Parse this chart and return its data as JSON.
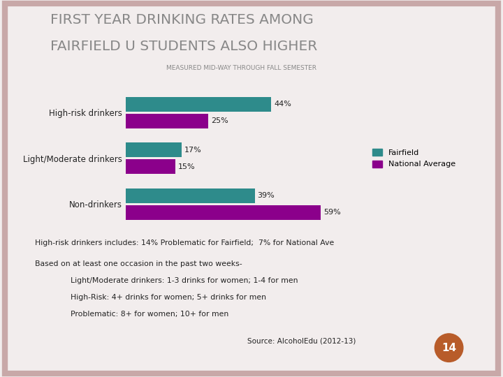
{
  "title_line1": "FIRST YEAR DRINKING RATES AMONG",
  "title_line2": "FAIRFIELD U STUDENTS ALSO HIGHER",
  "subtitle": "MEASURED MID-WAY THROUGH FALL SEMESTER",
  "categories": [
    "High-risk drinkers",
    "Light/Moderate drinkers",
    "Non-drinkers"
  ],
  "fairfield_values": [
    44,
    17,
    39
  ],
  "national_values": [
    25,
    15,
    59
  ],
  "fairfield_color": "#2e8b8b",
  "national_color": "#8b008b",
  "bg_color": "#f2eded",
  "border_color": "#c8a8a8",
  "text_color": "#222222",
  "note1": "High-risk drinkers includes: 14% Problematic for Fairfield;  7% for National Ave",
  "note2_line1": "Based on at least one occasion in the past two weeks-",
  "note2_indent1": "        Light/Moderate drinkers: 1-3 drinks for women; 1-4 for men",
  "note2_indent2": "        High-Risk: 4+ drinks for women; 5+ drinks for men",
  "note2_indent3": "        Problematic: 8+ for women; 10+ for men",
  "source": "Source: AlcoholEdu (2012-13)",
  "page_number": "14",
  "legend_fairfield": "Fairfield",
  "legend_national": "National Average",
  "title_color": "#888888",
  "subtitle_color": "#888888",
  "circle_color": "#b85c2a"
}
